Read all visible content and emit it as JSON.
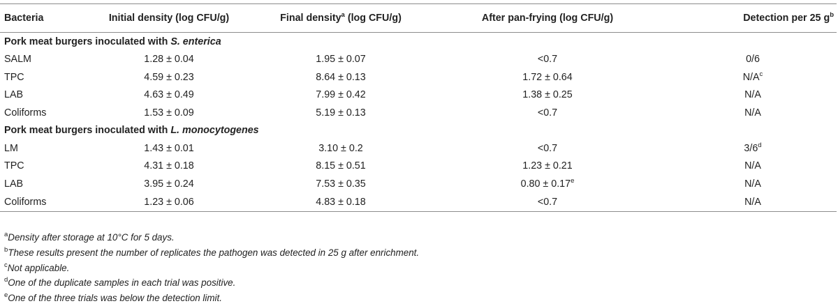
{
  "headers": {
    "bacteria": "Bacteria",
    "initial": "Initial density (log CFU/g)",
    "final_pre": "Final density",
    "final_sup": "a",
    "final_post": " (log CFU/g)",
    "after": "After pan-frying (log CFU/g)",
    "detection": "Detection per 25 g",
    "detection_sup": "b"
  },
  "groups": [
    {
      "label_pre": "Pork meat burgers inoculated with ",
      "label_em": "S. enterica",
      "rows": [
        {
          "bacteria": "SALM",
          "initial": "1.28 ± 0.04",
          "final": "1.95 ± 0.07",
          "after": "<0.7",
          "after_sup": "",
          "detection": "0/6",
          "detection_sup": ""
        },
        {
          "bacteria": "TPC",
          "initial": "4.59 ± 0.23",
          "final": "8.64 ± 0.13",
          "after": "1.72 ± 0.64",
          "after_sup": "",
          "detection": "N/A",
          "detection_sup": "c"
        },
        {
          "bacteria": "LAB",
          "initial": "4.63 ± 0.49",
          "final": "7.99 ± 0.42",
          "after": "1.38 ± 0.25",
          "after_sup": "",
          "detection": "N/A",
          "detection_sup": ""
        },
        {
          "bacteria": "Coliforms",
          "initial": "1.53 ± 0.09",
          "final": "5.19 ± 0.13",
          "after": "<0.7",
          "after_sup": "",
          "detection": "N/A",
          "detection_sup": ""
        }
      ]
    },
    {
      "label_pre": "Pork meat burgers inoculated with ",
      "label_em": "L. monocytogenes",
      "rows": [
        {
          "bacteria": "LM",
          "initial": "1.43 ± 0.01",
          "final": "3.10 ± 0.2",
          "after": "<0.7",
          "after_sup": "",
          "detection": "3/6",
          "detection_sup": "d"
        },
        {
          "bacteria": "TPC",
          "initial": "4.31 ± 0.18",
          "final": "8.15 ± 0.51",
          "after": "1.23 ± 0.21",
          "after_sup": "",
          "detection": "N/A",
          "detection_sup": ""
        },
        {
          "bacteria": "LAB",
          "initial": "3.95 ± 0.24",
          "final": "7.53 ± 0.35",
          "after": "0.80 ± 0.17",
          "after_sup": "e",
          "detection": "N/A",
          "detection_sup": ""
        },
        {
          "bacteria": "Coliforms",
          "initial": "1.23 ± 0.06",
          "final": "4.83 ± 0.18",
          "after": "<0.7",
          "after_sup": "",
          "detection": "N/A",
          "detection_sup": ""
        }
      ]
    }
  ],
  "footnotes": [
    {
      "mark": "a",
      "text": "Density after storage at 10°C for 5 days."
    },
    {
      "mark": "b",
      "text": "These results present the number of replicates the pathogen was detected in 25 g after enrichment."
    },
    {
      "mark": "c",
      "text": "Not applicable."
    },
    {
      "mark": "d",
      "text": "One of the duplicate samples in each trial was positive."
    },
    {
      "mark": "e",
      "text": "One of the three trials was below the detection limit."
    }
  ]
}
